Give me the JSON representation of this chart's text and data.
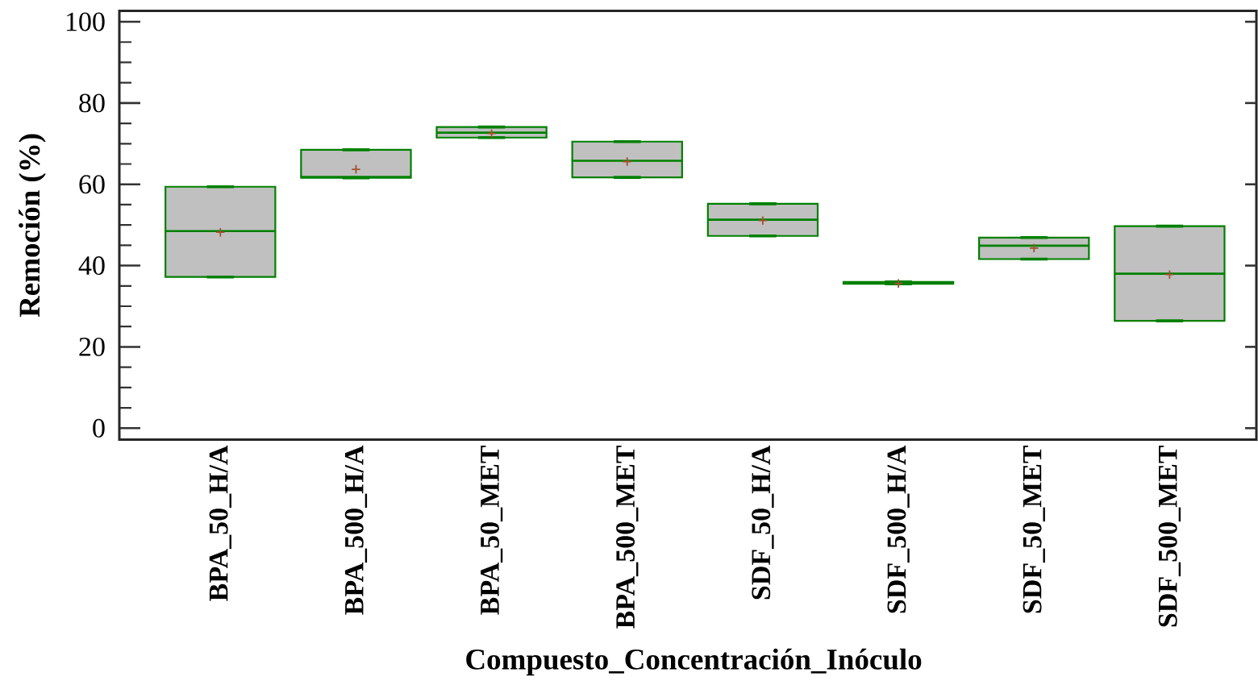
{
  "chart_data": {
    "type": "box",
    "xlabel": "Compuesto_Concentración_Inóculo",
    "ylabel": "Remoción (%)",
    "categories": [
      "BPA_50_H/A",
      "BPA_500_H/A",
      "BPA_50_MET",
      "BPA_500_MET",
      "SDF_50_H/A",
      "SDF_500_H/A",
      "SDF_50_MET",
      "SDF_500_MET"
    ],
    "series": [
      {
        "color": "#c0c0c0",
        "boxes": [
          {
            "low": 37.2,
            "q1": 37.2,
            "median": 48.5,
            "q3": 59.4,
            "high": 59.4,
            "mean": 48.2
          },
          {
            "low": 61.6,
            "q1": 61.6,
            "median": 61.8,
            "q3": 68.5,
            "high": 68.5,
            "mean": 63.7
          },
          {
            "low": 71.5,
            "q1": 71.5,
            "median": 72.7,
            "q3": 74.1,
            "high": 74.1,
            "mean": 72.5
          },
          {
            "low": 61.7,
            "q1": 61.7,
            "median": 65.8,
            "q3": 70.5,
            "high": 70.5,
            "mean": 65.6
          },
          {
            "low": 47.3,
            "q1": 47.3,
            "median": 51.3,
            "q3": 55.2,
            "high": 55.2,
            "mean": 51.1
          },
          {
            "low": 35.5,
            "q1": 35.5,
            "median": 35.8,
            "q3": 36.0,
            "high": 36.0,
            "mean": 35.6
          },
          {
            "low": 41.6,
            "q1": 41.6,
            "median": 44.9,
            "q3": 46.9,
            "high": 46.9,
            "mean": 44.3
          },
          {
            "low": 26.4,
            "q1": 26.4,
            "median": 38.0,
            "q3": 49.7,
            "high": 49.7,
            "mean": 37.8
          }
        ]
      }
    ],
    "ylim": [
      -2.8,
      102.7
    ],
    "yticks": [
      0,
      {
        "value": 5,
        "label": null
      },
      {
        "value": 10,
        "label": null
      },
      {
        "value": 15,
        "label": null
      },
      20,
      {
        "value": 25,
        "label": null
      },
      {
        "value": 30,
        "label": null
      },
      {
        "value": 35,
        "label": null
      },
      40,
      {
        "value": 45,
        "label": null
      },
      {
        "value": 50,
        "label": null
      },
      {
        "value": 55,
        "label": null
      },
      60,
      {
        "value": 65,
        "label": null
      },
      {
        "value": 70,
        "label": null
      },
      {
        "value": 75,
        "label": null
      },
      80,
      {
        "value": 85,
        "label": null
      },
      {
        "value": 90,
        "label": null
      },
      {
        "value": 95,
        "label": null
      },
      100
    ]
  }
}
